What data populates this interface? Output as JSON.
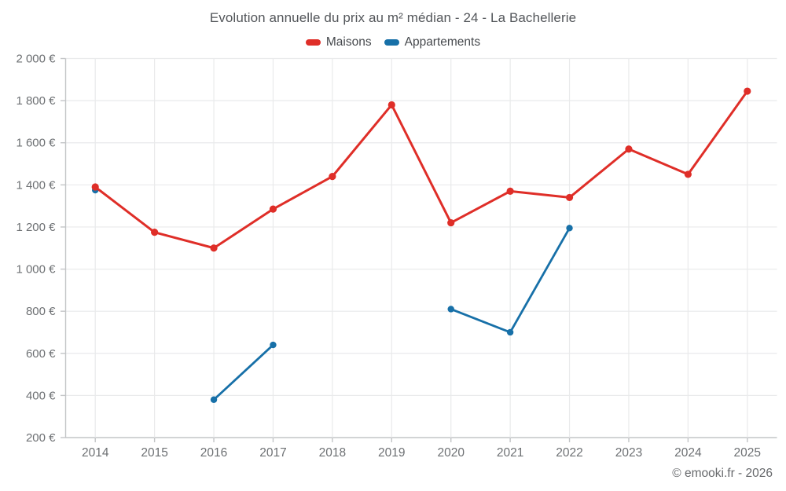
{
  "header": {
    "title": "Evolution annuelle du prix au m² médian - 24 - La Bachellerie"
  },
  "footer": {
    "credit": "© emooki.fr - 2026"
  },
  "chart_data": {
    "type": "line",
    "title": "Evolution annuelle du prix au m² médian - 24 - La Bachellerie",
    "x": [
      "2014",
      "2015",
      "2016",
      "2017",
      "2018",
      "2019",
      "2020",
      "2021",
      "2022",
      "2023",
      "2024",
      "2025"
    ],
    "series": [
      {
        "name": "Maisons",
        "color": "#df2e28",
        "marker_radius": 4.6,
        "line_width": 3,
        "values": [
          1390,
          1175,
          1100,
          1285,
          1440,
          1780,
          1220,
          1370,
          1340,
          1570,
          1450,
          1845
        ]
      },
      {
        "name": "Appartements",
        "color": "#1770a8",
        "marker_radius": 4.2,
        "line_width": 2.8,
        "values": [
          1375,
          null,
          380,
          640,
          null,
          null,
          810,
          700,
          1195,
          null,
          null,
          null
        ]
      }
    ],
    "ylabel": "",
    "xlabel": "",
    "ylim": [
      200,
      2000
    ],
    "yticks": [
      200,
      400,
      600,
      800,
      1000,
      1200,
      1400,
      1600,
      1800,
      2000
    ],
    "ytick_labels": [
      "200 €",
      "400 €",
      "600 €",
      "800 €",
      "1 000 €",
      "1 200 €",
      "1 400 €",
      "1 600 €",
      "1 800 €",
      "2 000 €"
    ],
    "grid": true,
    "legend_position": "top",
    "colors": {
      "grid_line": "#e9eaeb",
      "axis_line": "#c3c5c7",
      "tick_label": "#6d7073",
      "background": "#ffffff"
    }
  }
}
